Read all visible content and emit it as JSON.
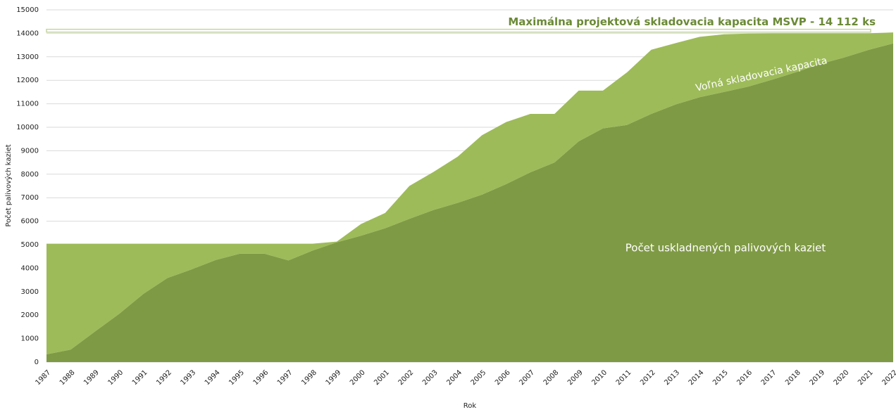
{
  "chart_data": {
    "type": "stacked_area",
    "x_label": "Rok",
    "y_label": "Počet palivových kaziet",
    "categories": [
      "1987",
      "1988",
      "1989",
      "1990",
      "1991",
      "1992",
      "1993",
      "1994",
      "1995",
      "1996",
      "1997",
      "1998",
      "1999",
      "2000",
      "2001",
      "2002",
      "2003",
      "2004",
      "2005",
      "2006",
      "2007",
      "2008",
      "2009",
      "2010",
      "2011",
      "2012",
      "2013",
      "2014",
      "2015",
      "2016",
      "2017",
      "2018",
      "2019",
      "2020",
      "2021",
      "2022"
    ],
    "series": [
      {
        "name": "Počet uskladnených palivových kaziet",
        "color": "#7f9a45",
        "values": [
          330,
          530,
          1300,
          2050,
          2900,
          3580,
          3950,
          4350,
          4620,
          4620,
          4330,
          4750,
          5100,
          5380,
          5700,
          6100,
          6480,
          6780,
          7130,
          7580,
          8080,
          8500,
          9400,
          9950,
          10100,
          10570,
          10970,
          11280,
          11500,
          11730,
          12030,
          12350,
          12700,
          12980,
          13300,
          13570
        ]
      },
      {
        "name": "Voľná skladovacia kapacita",
        "color": "#9dbb59",
        "values": [
          4710,
          4510,
          3740,
          2990,
          2140,
          1460,
          1090,
          690,
          420,
          420,
          710,
          290,
          30,
          500,
          650,
          1400,
          1620,
          1970,
          2530,
          2640,
          2490,
          2070,
          2160,
          1610,
          2240,
          2730,
          2610,
          2570,
          2460,
          2260,
          1970,
          1650,
          1300,
          1020,
          700,
          470
        ]
      }
    ],
    "reference_line": {
      "value": 14112,
      "label": "Maximálna projektová skladovacia kapacita MSVP - 14 112 ks",
      "color": "#c5d6a0"
    },
    "ylim": [
      0,
      15000
    ],
    "yticks": [
      0,
      1000,
      2000,
      3000,
      4000,
      5000,
      6000,
      7000,
      8000,
      9000,
      10000,
      11000,
      12000,
      13000,
      14000,
      15000
    ],
    "grid": true
  }
}
